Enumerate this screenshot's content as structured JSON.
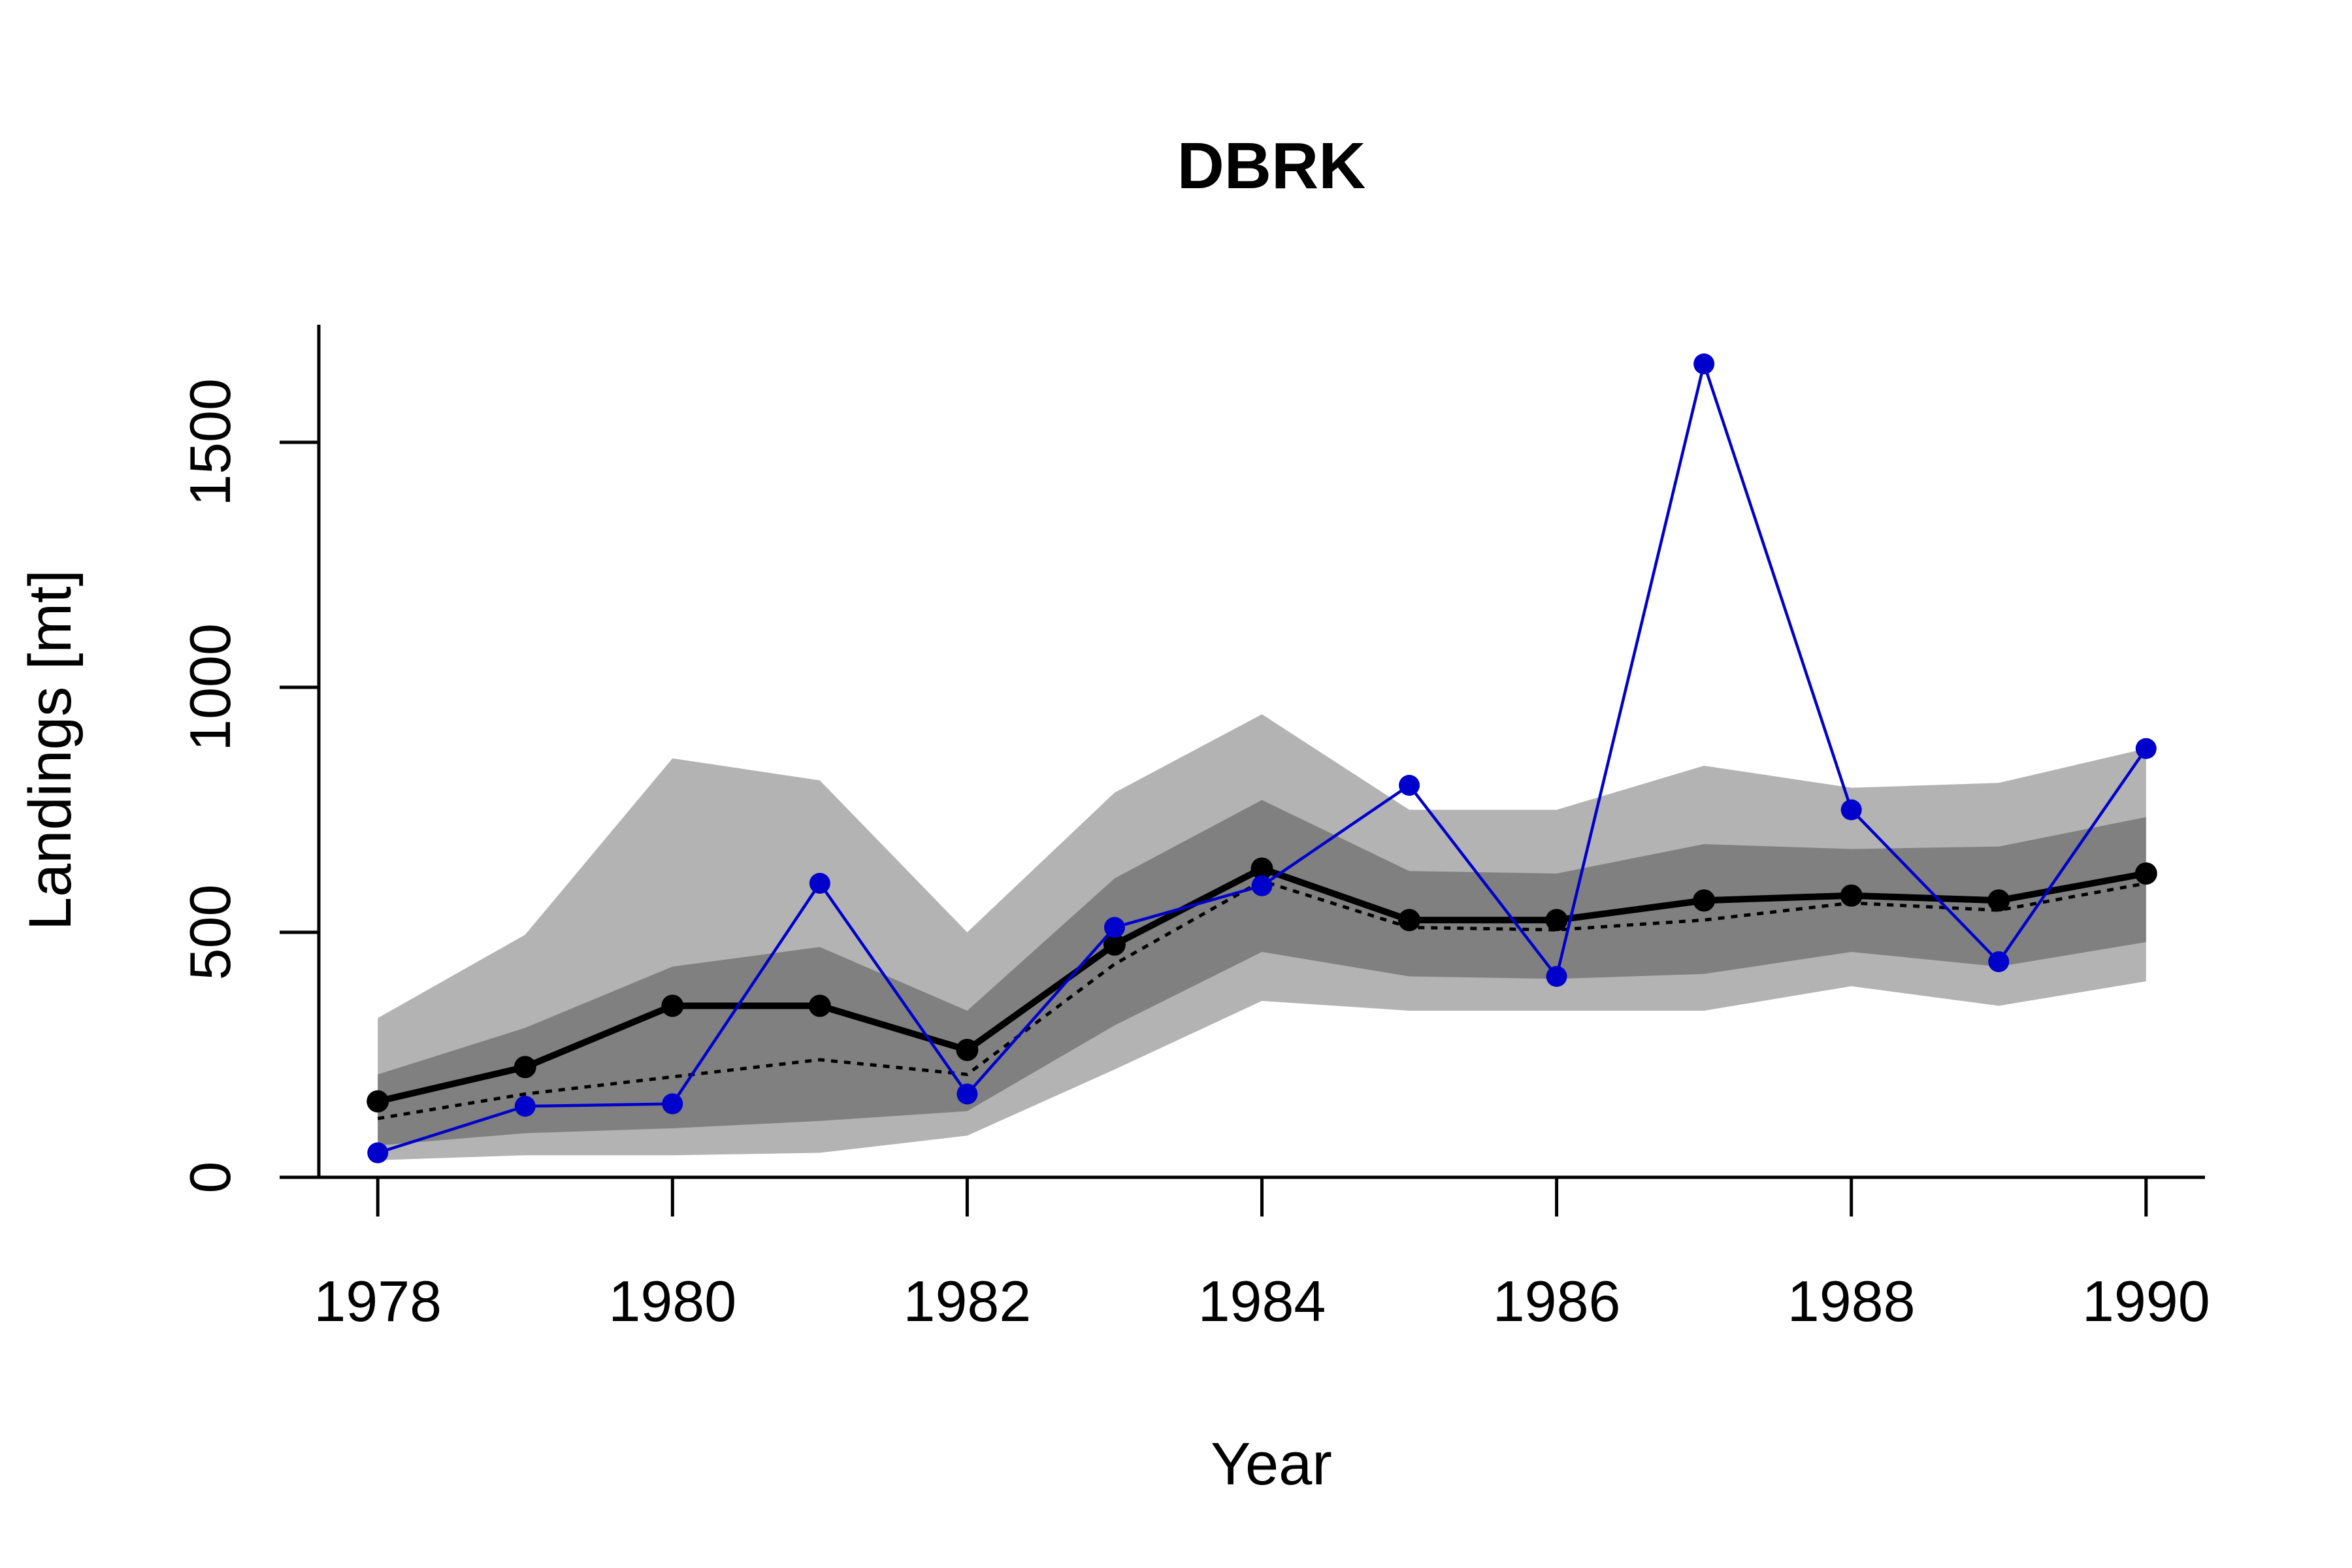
{
  "chart_data": {
    "type": "line",
    "title": "DBRK",
    "xlabel": "Year",
    "ylabel": "Landings [mt]",
    "x": [
      1978,
      1979,
      1980,
      1981,
      1982,
      1983,
      1984,
      1985,
      1986,
      1987,
      1988,
      1989,
      1990
    ],
    "xticks": [
      1978,
      1980,
      1982,
      1984,
      1986,
      1988,
      1990
    ],
    "xlim": [
      1977.6,
      1990.4
    ],
    "yticks": [
      0,
      500,
      1000,
      1500
    ],
    "ylim": [
      0,
      1740
    ],
    "grid": false,
    "colors": {
      "outer_band": "#b3b3b3",
      "inner_band": "#808080",
      "median": "#000000",
      "mean": "#000000",
      "observed": "#0000cc"
    },
    "bands": [
      {
        "role": "outer",
        "lower": [
          35,
          45,
          45,
          50,
          85,
          220,
          360,
          340,
          340,
          340,
          390,
          350,
          400
        ],
        "upper": [
          325,
          495,
          855,
          810,
          500,
          785,
          945,
          750,
          750,
          840,
          795,
          805,
          875
        ]
      },
      {
        "role": "inner",
        "lower": [
          65,
          90,
          100,
          115,
          135,
          310,
          460,
          410,
          405,
          415,
          460,
          430,
          480
        ],
        "upper": [
          210,
          305,
          430,
          470,
          340,
          610,
          770,
          625,
          620,
          680,
          670,
          675,
          735
        ]
      }
    ],
    "series": [
      {
        "role": "dashed",
        "style": "dotted",
        "values": [
          120,
          170,
          205,
          240,
          210,
          435,
          605,
          510,
          505,
          525,
          560,
          545,
          600
        ]
      },
      {
        "role": "median",
        "style": "thick-line-points",
        "values": [
          155,
          225,
          350,
          350,
          260,
          475,
          630,
          525,
          525,
          565,
          575,
          565,
          620
        ]
      },
      {
        "role": "observed",
        "style": "line-points",
        "values": [
          50,
          145,
          150,
          600,
          170,
          510,
          595,
          800,
          410,
          1660,
          750,
          440,
          875
        ]
      }
    ]
  }
}
